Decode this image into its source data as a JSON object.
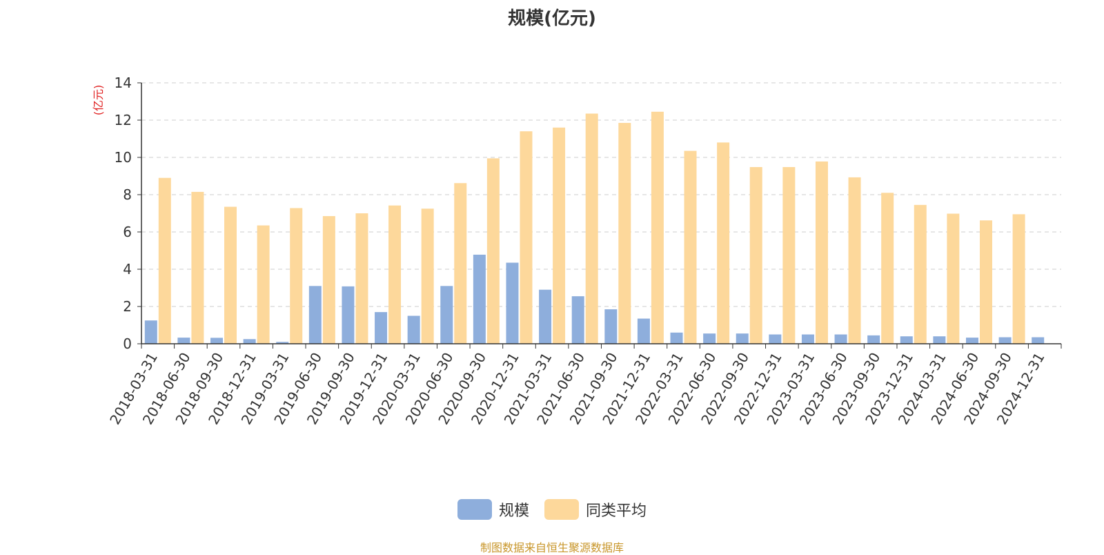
{
  "chart_data": {
    "type": "bar",
    "title": "规模(亿元)",
    "ylabel": "(亿元)",
    "ylim": [
      0,
      14
    ],
    "yticks": [
      0,
      2,
      4,
      6,
      8,
      10,
      12,
      14
    ],
    "grid": true,
    "legend_position": "bottom-center",
    "categories": [
      "2018-03-31",
      "2018-06-30",
      "2018-09-30",
      "2018-12-31",
      "2019-03-31",
      "2019-06-30",
      "2019-09-30",
      "2019-12-31",
      "2020-03-31",
      "2020-06-30",
      "2020-09-30",
      "2020-12-31",
      "2021-03-31",
      "2021-06-30",
      "2021-09-30",
      "2021-12-31",
      "2022-03-31",
      "2022-06-30",
      "2022-09-30",
      "2022-12-31",
      "2023-03-31",
      "2023-06-30",
      "2023-09-30",
      "2023-12-31",
      "2024-03-31",
      "2024-06-30",
      "2024-09-30",
      "2024-12-31"
    ],
    "series": [
      {
        "name": "规模",
        "color": "#8eaedc",
        "values": [
          1.25,
          0.33,
          0.32,
          0.25,
          0.1,
          3.1,
          3.08,
          1.7,
          1.5,
          3.1,
          4.78,
          4.35,
          2.9,
          2.55,
          1.85,
          1.35,
          0.6,
          0.55,
          0.55,
          0.5,
          0.5,
          0.5,
          0.45,
          0.4,
          0.4,
          0.33,
          0.35,
          0.35
        ]
      },
      {
        "name": "同类平均",
        "color": "#fdd89b",
        "values": [
          8.9,
          8.15,
          7.35,
          6.35,
          7.28,
          6.85,
          7.0,
          7.42,
          7.25,
          8.62,
          9.95,
          11.4,
          11.6,
          12.35,
          11.85,
          12.45,
          10.35,
          10.8,
          9.48,
          9.48,
          9.78,
          8.93,
          8.1,
          7.45,
          6.98,
          6.62,
          6.95,
          null
        ]
      }
    ]
  },
  "source_text": "制图数据来自恒生聚源数据库",
  "colors": {
    "axis": "#333333",
    "grid": "#cccccc",
    "ylabel": "#e02020",
    "source": "#c8962a"
  }
}
